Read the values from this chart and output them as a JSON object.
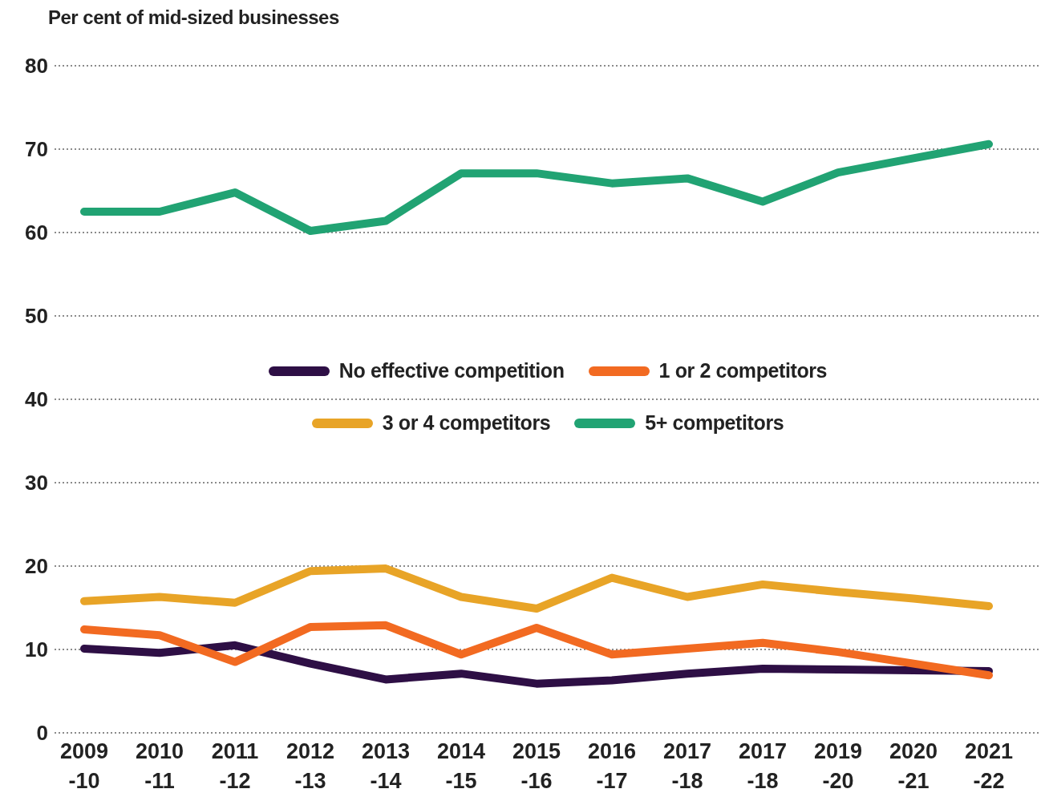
{
  "chart_data": {
    "type": "line",
    "ylabel": "Per cent of mid-sized businesses",
    "categories": [
      "2009\n-10",
      "2010\n-11",
      "2011\n-12",
      "2012\n-13",
      "2013\n-14",
      "2014\n-15",
      "2015\n-16",
      "2016\n-17",
      "2017\n-18",
      "2017\n-18",
      "2019\n-20",
      "2020\n-21",
      "2021\n-22"
    ],
    "series": [
      {
        "name": "No effective competition",
        "color": "#2e0f45",
        "values": [
          10.1,
          9.6,
          10.5,
          8.3,
          6.4,
          7.1,
          5.9,
          6.3,
          7.1,
          7.7,
          7.6,
          7.5,
          7.4
        ]
      },
      {
        "name": "1 or 2 competitors",
        "color": "#f26a21",
        "values": [
          12.4,
          11.7,
          8.5,
          12.7,
          12.9,
          9.4,
          12.6,
          9.4,
          10.1,
          10.8,
          9.7,
          8.3,
          6.9
        ]
      },
      {
        "name": "3 or 4 competitors",
        "color": "#e8a427",
        "values": [
          15.8,
          16.3,
          15.6,
          19.4,
          19.7,
          16.3,
          14.9,
          18.6,
          16.3,
          17.8,
          16.9,
          16.1,
          15.2
        ]
      },
      {
        "name": "5+ competitors",
        "color": "#21a373",
        "values": [
          62.5,
          62.5,
          64.8,
          60.2,
          61.4,
          67.1,
          67.1,
          65.9,
          66.5,
          63.7,
          67.2,
          68.9,
          70.6
        ]
      }
    ],
    "ylim": [
      0,
      80
    ],
    "yticks": [
      0,
      10,
      20,
      30,
      40,
      50,
      60,
      70,
      80
    ],
    "grid": "y",
    "legend": "center",
    "marker": "none",
    "line_style": "solid"
  }
}
